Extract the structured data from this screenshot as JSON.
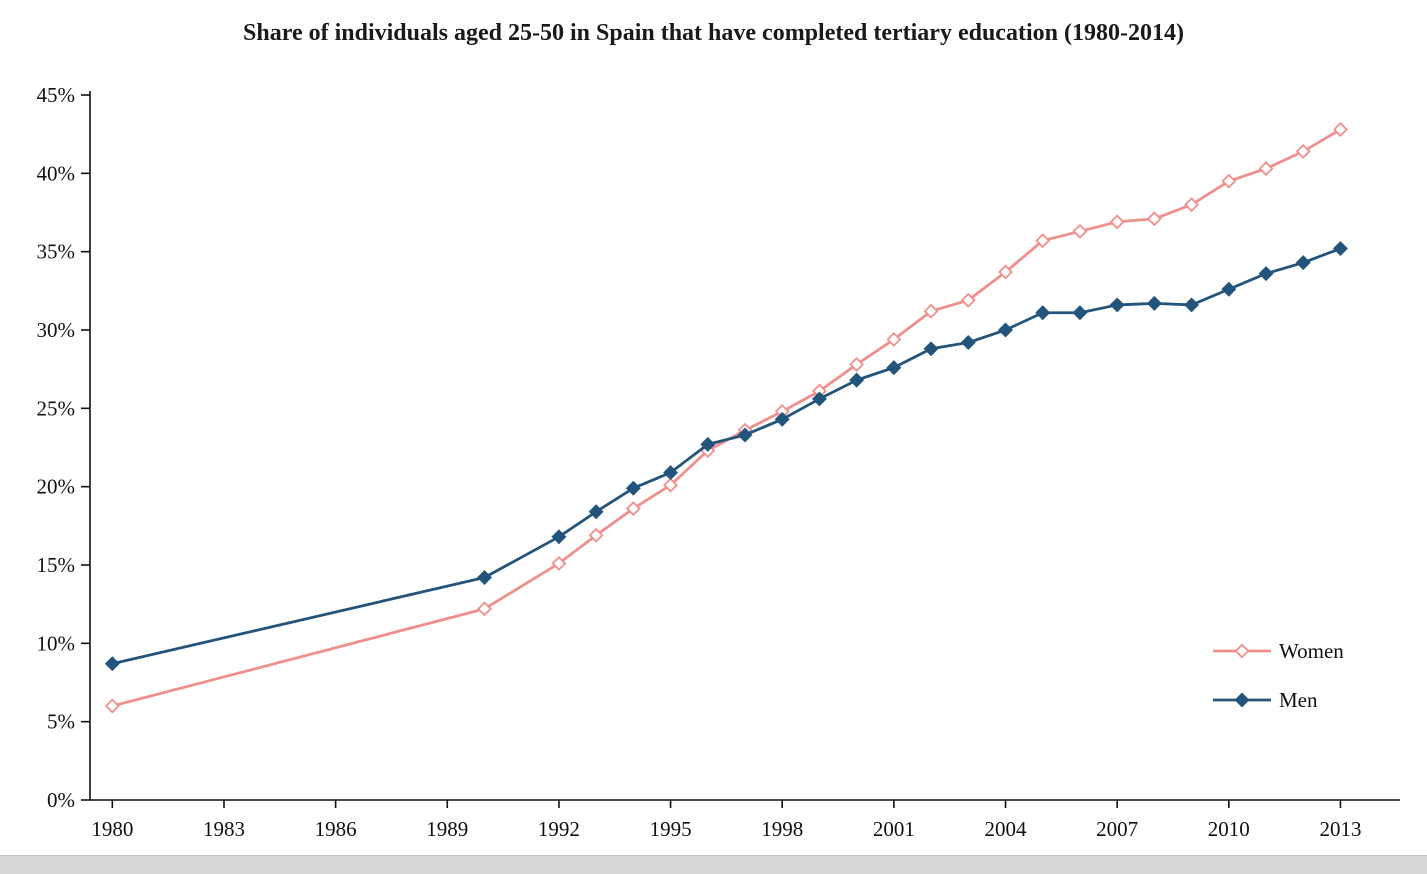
{
  "chart_data": {
    "type": "line",
    "title": "Share of individuals aged 25-50 in Spain that have completed tertiary education  (1980-2014)",
    "x": [
      1980,
      1990,
      1992,
      1993,
      1994,
      1995,
      1996,
      1997,
      1998,
      1999,
      2000,
      2001,
      2002,
      2003,
      2004,
      2005,
      2006,
      2007,
      2008,
      2009,
      2010,
      2011,
      2012,
      2013
    ],
    "series": [
      {
        "name": "Women",
        "color": "#F0908D",
        "marker": "open-diamond",
        "values": [
          6.0,
          12.2,
          15.1,
          16.9,
          18.6,
          20.1,
          22.3,
          23.6,
          24.8,
          26.1,
          27.8,
          29.4,
          31.2,
          31.9,
          33.7,
          35.7,
          36.3,
          36.9,
          37.1,
          38.0,
          39.5,
          40.3,
          41.4,
          42.8
        ]
      },
      {
        "name": "Men",
        "color": "#23547C",
        "marker": "filled-diamond",
        "values": [
          8.7,
          14.2,
          16.8,
          18.4,
          19.9,
          20.9,
          22.7,
          23.3,
          24.3,
          25.6,
          26.8,
          27.6,
          28.8,
          29.2,
          30.0,
          31.1,
          31.1,
          31.6,
          31.7,
          31.6,
          32.6,
          33.6,
          34.3,
          35.2
        ]
      }
    ],
    "xticks": [
      1980,
      1983,
      1986,
      1989,
      1992,
      1995,
      1998,
      2001,
      2004,
      2007,
      2010,
      2013
    ],
    "yticks": [
      0,
      5,
      10,
      15,
      20,
      25,
      30,
      35,
      40,
      45
    ],
    "ytick_suffix": "%",
    "xlim": [
      1979.4,
      2014.6
    ],
    "ylim": [
      0,
      45
    ],
    "grid": false,
    "legend_position": "right-lower",
    "axis_color": "#111111"
  }
}
